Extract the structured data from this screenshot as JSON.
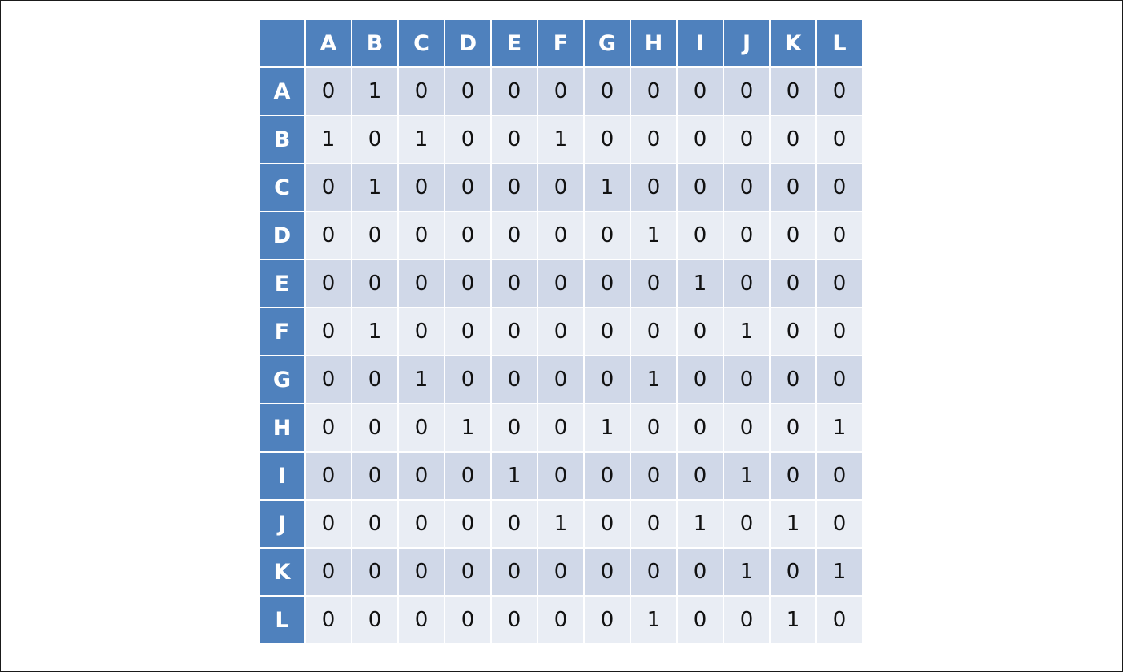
{
  "matrix": {
    "columns": [
      "A",
      "B",
      "C",
      "D",
      "E",
      "F",
      "G",
      "H",
      "I",
      "J",
      "K",
      "L"
    ],
    "rows": [
      {
        "label": "A",
        "values": [
          "0",
          "1",
          "0",
          "0",
          "0",
          "0",
          "0",
          "0",
          "0",
          "0",
          "0",
          "0"
        ]
      },
      {
        "label": "B",
        "values": [
          "1",
          "0",
          "1",
          "0",
          "0",
          "1",
          "0",
          "0",
          "0",
          "0",
          "0",
          "0"
        ]
      },
      {
        "label": "C",
        "values": [
          "0",
          "1",
          "0",
          "0",
          "0",
          "0",
          "1",
          "0",
          "0",
          "0",
          "0",
          "0"
        ]
      },
      {
        "label": "D",
        "values": [
          "0",
          "0",
          "0",
          "0",
          "0",
          "0",
          "0",
          "1",
          "0",
          "0",
          "0",
          "0"
        ]
      },
      {
        "label": "E",
        "values": [
          "0",
          "0",
          "0",
          "0",
          "0",
          "0",
          "0",
          "0",
          "1",
          "0",
          "0",
          "0"
        ]
      },
      {
        "label": "F",
        "values": [
          "0",
          "1",
          "0",
          "0",
          "0",
          "0",
          "0",
          "0",
          "0",
          "1",
          "0",
          "0"
        ]
      },
      {
        "label": "G",
        "values": [
          "0",
          "0",
          "1",
          "0",
          "0",
          "0",
          "0",
          "1",
          "0",
          "0",
          "0",
          "0"
        ]
      },
      {
        "label": "H",
        "values": [
          "0",
          "0",
          "0",
          "1",
          "0",
          "0",
          "1",
          "0",
          "0",
          "0",
          "0",
          "1"
        ]
      },
      {
        "label": "I",
        "values": [
          "0",
          "0",
          "0",
          "0",
          "1",
          "0",
          "0",
          "0",
          "0",
          "1",
          "0",
          "0"
        ]
      },
      {
        "label": "J",
        "values": [
          "0",
          "0",
          "0",
          "0",
          "0",
          "1",
          "0",
          "0",
          "1",
          "0",
          "1",
          "0"
        ]
      },
      {
        "label": "K",
        "values": [
          "0",
          "0",
          "0",
          "0",
          "0",
          "0",
          "0",
          "0",
          "0",
          "1",
          "0",
          "1"
        ]
      },
      {
        "label": "L",
        "values": [
          "0",
          "0",
          "0",
          "0",
          "0",
          "0",
          "0",
          "1",
          "0",
          "0",
          "1",
          "0"
        ]
      }
    ]
  },
  "colors": {
    "header": "#4f81bd",
    "row_band_dark": "#d0d8e8",
    "row_band_light": "#e9edf4"
  }
}
